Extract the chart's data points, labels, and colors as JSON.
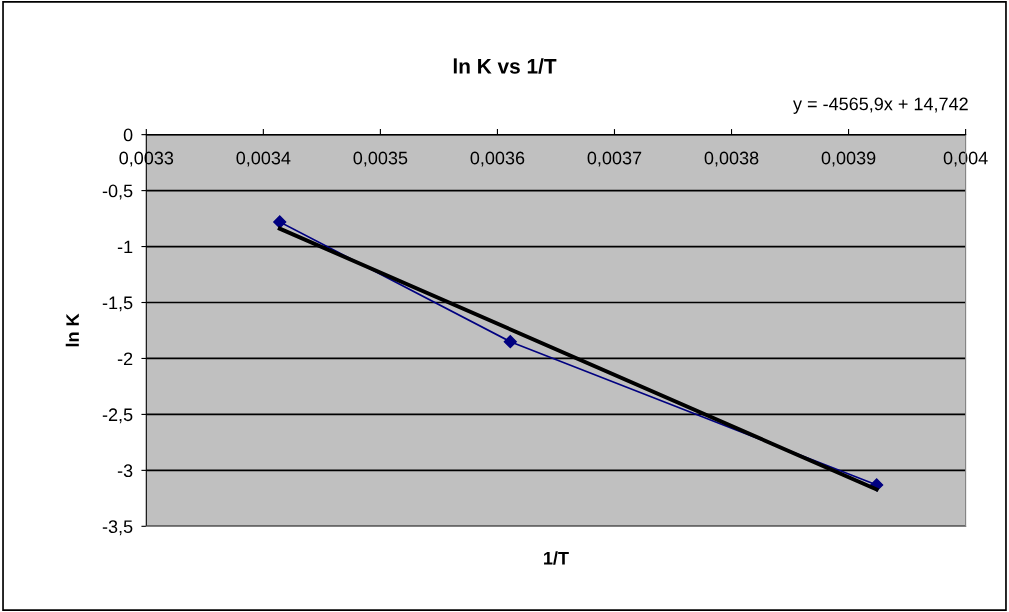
{
  "chart_data": {
    "type": "line",
    "title": "ln K vs 1/T",
    "xlabel": "1/T",
    "ylabel": "ln K",
    "annotations": [
      "y = -4565,9x + 14,742"
    ],
    "series": [
      {
        "color": "#000080",
        "x": [
          0.003414,
          0.003611,
          0.003924
        ],
        "values": [
          -0.78,
          -1.85,
          -3.13
        ],
        "marker": "diamond"
      },
      {
        "color": "#000000",
        "x": [
          0.003414,
          0.003924
        ],
        "values": [
          -0.84,
          -3.17
        ],
        "marker": "none"
      }
    ],
    "xlim": [
      0.0033,
      0.004
    ],
    "xticks": [
      {
        "value": 0.0033,
        "label": "0,0033"
      },
      {
        "value": 0.0034,
        "label": "0,0034"
      },
      {
        "value": 0.0035,
        "label": "0,0035"
      },
      {
        "value": 0.0036,
        "label": "0,0036"
      },
      {
        "value": 0.0037,
        "label": "0,0037"
      },
      {
        "value": 0.0038,
        "label": "0,0038"
      },
      {
        "value": 0.0039,
        "label": "0,0039"
      },
      {
        "value": 0.004,
        "label": "0,004"
      }
    ],
    "ylim": [
      -3.5,
      0
    ],
    "yticks": [
      0,
      {
        "value": -0.5,
        "label": "-0,5"
      },
      -1,
      {
        "value": -1.5,
        "label": "-1,5"
      },
      -2,
      {
        "value": -2.5,
        "label": "-2,5"
      },
      -3,
      {
        "value": -3.5,
        "label": "-3,5"
      }
    ],
    "grid": "y",
    "legend": false
  }
}
